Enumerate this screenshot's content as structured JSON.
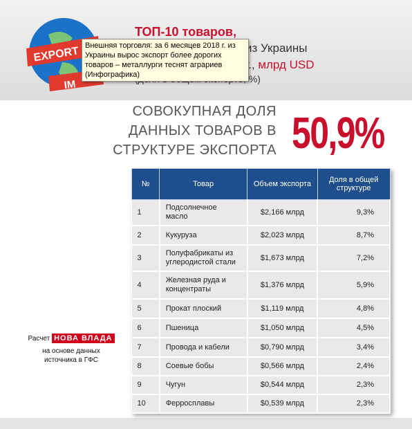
{
  "logo": {
    "top": "EXPORT",
    "bottom": "IM"
  },
  "header": {
    "title": "ТОП-10 товаров,",
    "line2": "из Украины",
    "line3": "г.,",
    "unit": "млрд USD",
    "line4": "(доля в общем экспорте, %)"
  },
  "tooltip": "Внешняя торговля: за 6 месяцев 2018 г. из Украины вырос экспорт более дорогих товаров – металлурги теснят аграриев (Инфографика)",
  "summary": {
    "lines": [
      "СОВОКУПНАЯ ДОЛЯ",
      "ДАННЫХ ТОВАРОВ В",
      "СТРУКТУРЕ ЭКСПОРТА"
    ],
    "value": "50,9%"
  },
  "table": {
    "columns": [
      "№",
      "Товар",
      "Объем экспорта",
      "Доля в общей структуре"
    ],
    "rows": [
      [
        "1",
        "Подсолнечное масло",
        "$2,166 млрд",
        "9,3%"
      ],
      [
        "2",
        "Кукуруза",
        "$2,023 млрд",
        "8,7%"
      ],
      [
        "3",
        "Полуфабрикаты из углеродистой стали",
        "$1,673 млрд",
        "7,2%"
      ],
      [
        "4",
        "Железная руда и концентраты",
        "$1,376 млрд",
        "5,9%"
      ],
      [
        "5",
        "Прокат плоский",
        "$1,119 млрд",
        "4,8%"
      ],
      [
        "6",
        "Пшеница",
        "$1,050 млрд",
        "4,5%"
      ],
      [
        "7",
        "Провода и кабели",
        "$0,790 млрд",
        "3,4%"
      ],
      [
        "8",
        "Соевые бобы",
        "$0,566 млрд",
        "2,4%"
      ],
      [
        "9",
        "Чугун",
        "$0,544 млрд",
        "2,3%"
      ],
      [
        "10",
        "Ферросплавы",
        "$0,539 млрд",
        "2,3%"
      ]
    ]
  },
  "footnote": {
    "prefix": "Расчет",
    "brand": "НОВА ВЛАДА",
    "lines": [
      "на основе данных",
      "источника в ГФС"
    ]
  }
}
